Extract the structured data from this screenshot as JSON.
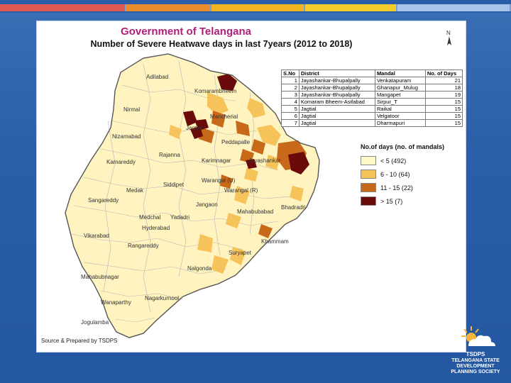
{
  "header": {
    "title": "Government of Telangana",
    "subtitle": "Number of Severe Heatwave days in last 7years (2012 to 2018)"
  },
  "map": {
    "places": [
      "Adilabad",
      "Komarambheem",
      "Nirmal",
      "Mancherial",
      "Jagtial",
      "Nizamabad",
      "Peddapalle",
      "Rajanna",
      "Karimnagar",
      "Jayashankar",
      "Kamareddy",
      "Siddipet",
      "Warangal (U)",
      "Medak",
      "Warangal (R)",
      "Sangareddy",
      "Jangaon",
      "Mahabubabad",
      "Bhadradri",
      "Medchal",
      "Yadadri",
      "Hyderabad",
      "Vikarabad",
      "Rangareddy",
      "Khammam",
      "Suryapet",
      "Nalgonda",
      "Mahabubnagar",
      "Nagarkurnool",
      "Wanaparthy",
      "Jogulamba"
    ]
  },
  "ranking_table": {
    "headers": [
      "S.No",
      "District",
      "Mandal",
      "No. of Days"
    ],
    "rows": [
      [
        "1",
        "Jayashankar-Bhupalpally",
        "Venkatapuram",
        "21"
      ],
      [
        "2",
        "Jayashankar-Bhupalpally",
        "Ghanapur_Mulug",
        "18"
      ],
      [
        "3",
        "Jayashankar-Bhupalpally",
        "Mangapet",
        "19"
      ],
      [
        "4",
        "Komaram Bheem-Asifabad",
        "Sirpur_T",
        "15"
      ],
      [
        "5",
        "Jagtial",
        "Raikal",
        "15"
      ],
      [
        "6",
        "Jagtial",
        "Velgatoor",
        "15"
      ],
      [
        "7",
        "Jagtial",
        "Dharmapuri",
        "15"
      ]
    ]
  },
  "legend": {
    "title": "No.of days (no. of mandals)",
    "items": [
      {
        "label": "< 5 (492)",
        "color": "#fff8c8"
      },
      {
        "label": "6 - 10 (64)",
        "color": "#f6c35a"
      },
      {
        "label": "11 - 15 (22)",
        "color": "#c8691a"
      },
      {
        "label": "> 15 (7)",
        "color": "#6a0a0a"
      }
    ]
  },
  "source": "Source & Prepared by TSDPS",
  "logo": {
    "lines": [
      "TSDPS",
      "TELANGANA STATE",
      "DEVELOPMENT",
      "PLANNING SOCIETY"
    ]
  }
}
